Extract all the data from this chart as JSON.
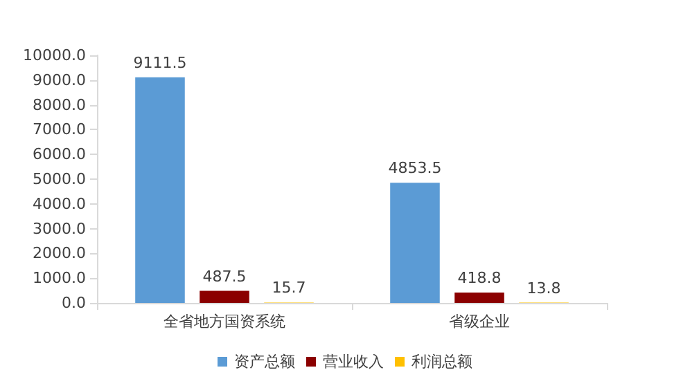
{
  "chart_data": {
    "type": "bar",
    "categories": [
      "全省地方国资系统",
      "省级企业"
    ],
    "series": [
      {
        "name": "资产总额",
        "color": "#5b9bd5",
        "values": [
          9111.5,
          4853.5
        ]
      },
      {
        "name": "营业收入",
        "color": "#8b0000",
        "values": [
          487.5,
          418.8
        ]
      },
      {
        "name": "利润总额",
        "color": "#ffc000",
        "values": [
          15.7,
          13.8
        ]
      }
    ],
    "ylim": [
      0,
      10000
    ],
    "yticks": [
      {
        "value": 0,
        "label": "0.0"
      },
      {
        "value": 1000,
        "label": "1000.0"
      },
      {
        "value": 2000,
        "label": "2000.0"
      },
      {
        "value": 3000,
        "label": "3000.0"
      },
      {
        "value": 4000,
        "label": "4000.0"
      },
      {
        "value": 5000,
        "label": "5000.0"
      },
      {
        "value": 6000,
        "label": "6000.0"
      },
      {
        "value": 7000,
        "label": "7000.0"
      },
      {
        "value": 8000,
        "label": "8000.0"
      },
      {
        "value": 9000,
        "label": "9000.0"
      },
      {
        "value": 10000,
        "label": "10000.0"
      }
    ],
    "data_labels": true,
    "legend": "bottom",
    "grid": false
  }
}
